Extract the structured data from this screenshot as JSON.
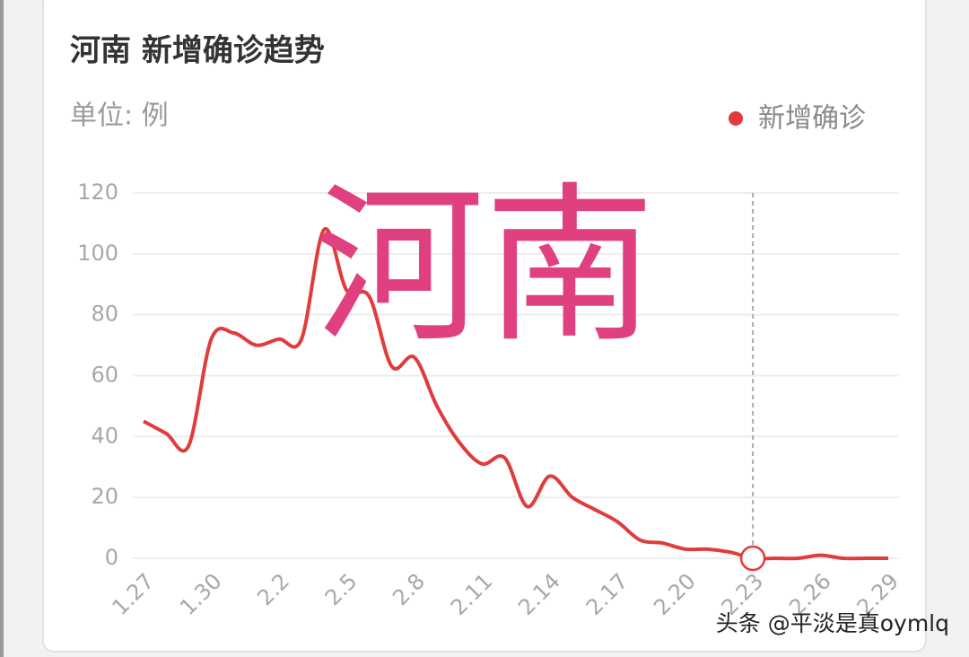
{
  "chart_data": {
    "type": "line",
    "title": "河南 新增确诊趋势",
    "subtitle": "单位: 例",
    "categories": [
      "1.27",
      null,
      null,
      "1.30",
      null,
      null,
      "2.2",
      null,
      null,
      "2.5",
      null,
      null,
      "2.8",
      null,
      null,
      "2.11",
      null,
      null,
      "2.14",
      null,
      null,
      "2.17",
      null,
      null,
      "2.20",
      null,
      null,
      "2.23",
      null,
      null,
      "2.26",
      null,
      null,
      "2.29"
    ],
    "series": [
      {
        "name": "新增确诊",
        "color": "#e03c3c",
        "values": [
          45,
          41,
          37,
          72,
          74,
          70,
          72,
          72,
          108,
          88,
          86,
          63,
          66,
          50,
          38,
          31,
          33,
          17,
          27,
          20,
          16,
          12,
          6,
          5,
          3,
          3,
          2,
          0,
          0,
          0,
          1,
          0,
          0,
          0
        ]
      }
    ],
    "ylim": [
      0,
      120
    ],
    "yticks": [
      0,
      20,
      40,
      60,
      80,
      100,
      120
    ],
    "grid": true,
    "legend": "top-right",
    "highlight_index": 27
  },
  "watermark": "河南",
  "credit": "头条 @平淡是真oymlq"
}
